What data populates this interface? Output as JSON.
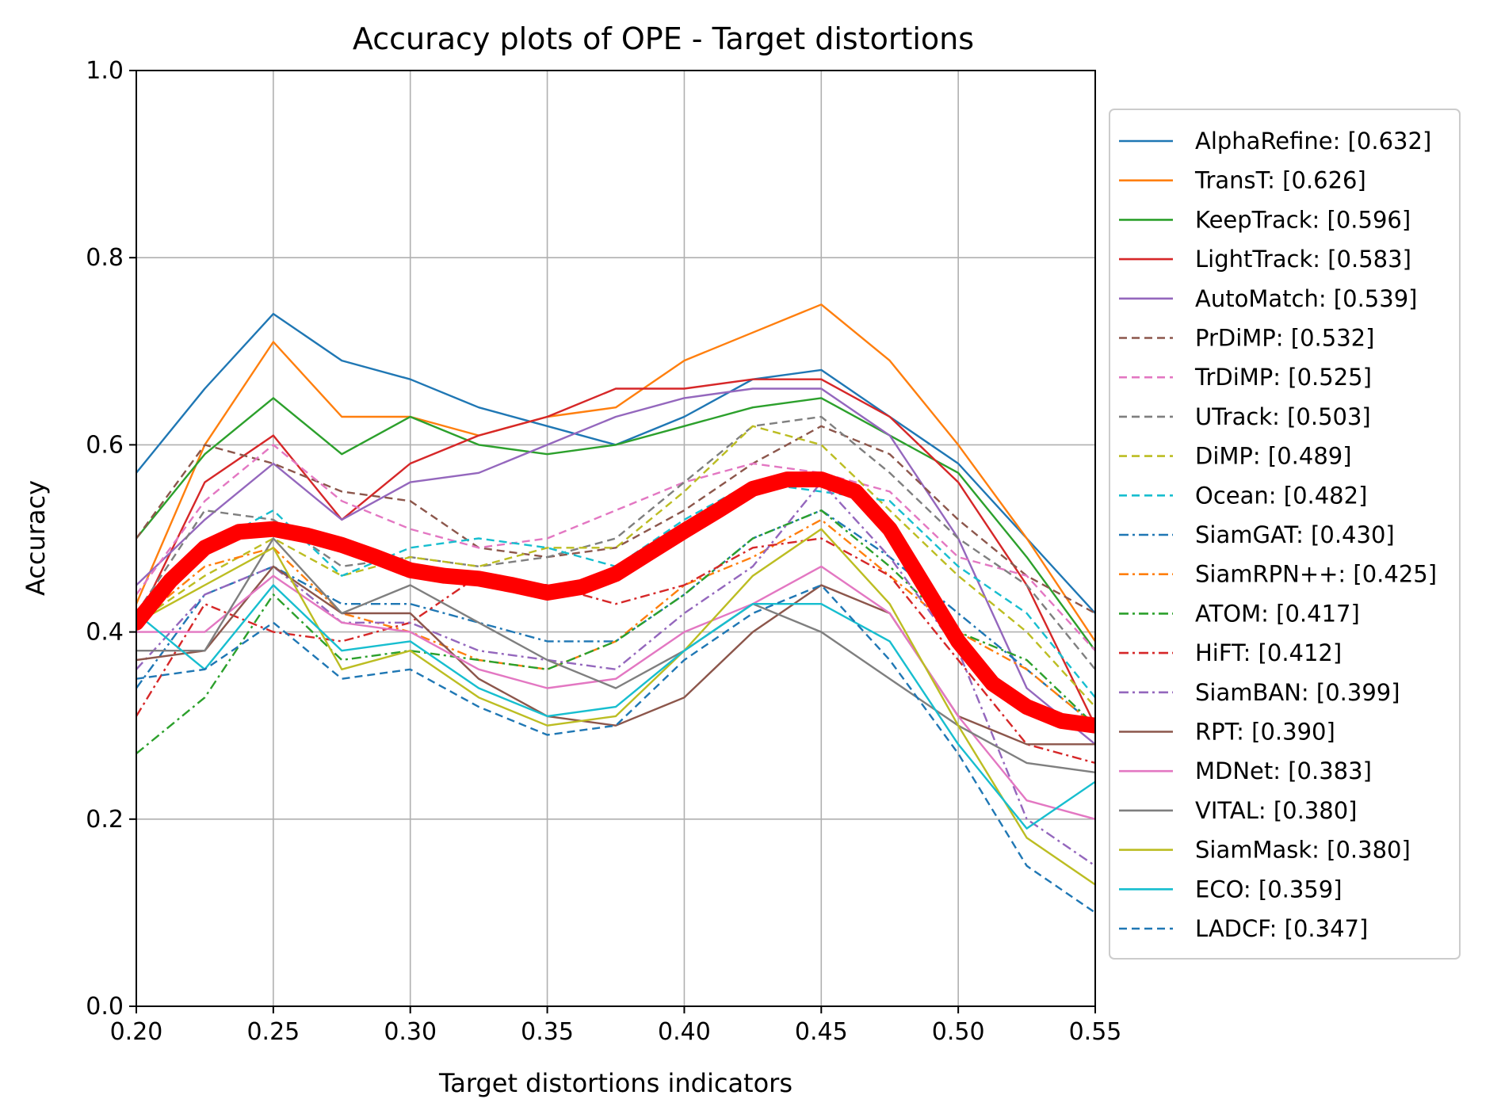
{
  "chart_data": {
    "type": "line",
    "title": "Accuracy plots of OPE - Target distortions",
    "xlabel": "Target distortions indicators",
    "ylabel": "Accuracy",
    "xlim": [
      0.2,
      0.55
    ],
    "ylim": [
      0.0,
      1.0
    ],
    "xticks": [
      0.2,
      0.25,
      0.3,
      0.35,
      0.4,
      0.45,
      0.5,
      0.55
    ],
    "yticks": [
      0.0,
      0.2,
      0.4,
      0.6,
      0.8,
      1.0
    ],
    "xtick_labels": [
      "0.20",
      "0.25",
      "0.30",
      "0.35",
      "0.40",
      "0.45",
      "0.50",
      "0.55"
    ],
    "ytick_labels": [
      "0.0",
      "0.2",
      "0.4",
      "0.6",
      "0.8",
      "1.0"
    ],
    "grid": true,
    "legend_position": "right-outside",
    "x": [
      0.2,
      0.225,
      0.25,
      0.275,
      0.3,
      0.325,
      0.35,
      0.375,
      0.4,
      0.425,
      0.45,
      0.475,
      0.5,
      0.525,
      0.55
    ],
    "series": [
      {
        "name": "AlphaRefine: [0.632]",
        "color": "#1f77b4",
        "dash": "solid",
        "values": [
          0.57,
          0.66,
          0.74,
          0.69,
          0.67,
          0.64,
          0.62,
          0.6,
          0.63,
          0.67,
          0.68,
          0.63,
          0.58,
          0.5,
          0.42
        ]
      },
      {
        "name": "TransT: [0.626]",
        "color": "#ff7f0e",
        "dash": "solid",
        "values": [
          0.43,
          0.6,
          0.71,
          0.63,
          0.63,
          0.61,
          0.63,
          0.64,
          0.69,
          0.72,
          0.75,
          0.69,
          0.6,
          0.5,
          0.39
        ]
      },
      {
        "name": "KeepTrack: [0.596]",
        "color": "#2ca02c",
        "dash": "solid",
        "values": [
          0.5,
          0.59,
          0.65,
          0.59,
          0.63,
          0.6,
          0.59,
          0.6,
          0.62,
          0.64,
          0.65,
          0.61,
          0.57,
          0.48,
          0.38
        ]
      },
      {
        "name": "LightTrack: [0.583]",
        "color": "#d62728",
        "dash": "solid",
        "values": [
          0.41,
          0.56,
          0.61,
          0.52,
          0.58,
          0.61,
          0.63,
          0.66,
          0.66,
          0.67,
          0.67,
          0.63,
          0.56,
          0.45,
          0.3
        ]
      },
      {
        "name": "AutoMatch: [0.539]",
        "color": "#9467bd",
        "dash": "solid",
        "values": [
          0.45,
          0.52,
          0.58,
          0.52,
          0.56,
          0.57,
          0.6,
          0.63,
          0.65,
          0.66,
          0.66,
          0.61,
          0.5,
          0.34,
          0.28
        ]
      },
      {
        "name": "PrDiMP: [0.532]",
        "color": "#8c564b",
        "dash": "dashed",
        "values": [
          0.5,
          0.6,
          0.58,
          0.55,
          0.54,
          0.49,
          0.48,
          0.49,
          0.53,
          0.58,
          0.62,
          0.59,
          0.52,
          0.46,
          0.42
        ]
      },
      {
        "name": "TrDiMP: [0.525]",
        "color": "#e377c2",
        "dash": "dashed",
        "values": [
          0.44,
          0.54,
          0.6,
          0.54,
          0.51,
          0.49,
          0.5,
          0.53,
          0.56,
          0.58,
          0.57,
          0.55,
          0.48,
          0.46,
          0.38
        ]
      },
      {
        "name": "UTrack: [0.503]",
        "color": "#7f7f7f",
        "dash": "dashed",
        "values": [
          0.42,
          0.53,
          0.52,
          0.47,
          0.48,
          0.47,
          0.48,
          0.5,
          0.56,
          0.62,
          0.63,
          0.57,
          0.5,
          0.45,
          0.36
        ]
      },
      {
        "name": "DiMP: [0.489]",
        "color": "#bcbd22",
        "dash": "dashed",
        "values": [
          0.41,
          0.46,
          0.5,
          0.46,
          0.48,
          0.47,
          0.49,
          0.49,
          0.55,
          0.62,
          0.6,
          0.53,
          0.46,
          0.4,
          0.32
        ]
      },
      {
        "name": "Ocean: [0.482]",
        "color": "#17becf",
        "dash": "dashed",
        "values": [
          0.42,
          0.49,
          0.53,
          0.46,
          0.49,
          0.5,
          0.49,
          0.47,
          0.52,
          0.56,
          0.55,
          0.54,
          0.47,
          0.42,
          0.33
        ]
      },
      {
        "name": "SiamGAT: [0.430]",
        "color": "#1f77b4",
        "dash": "dashdot",
        "values": [
          0.34,
          0.44,
          0.47,
          0.43,
          0.43,
          0.41,
          0.39,
          0.39,
          0.44,
          0.5,
          0.53,
          0.48,
          0.42,
          0.36,
          0.3
        ]
      },
      {
        "name": "SiamRPN++: [0.425]",
        "color": "#ff7f0e",
        "dash": "dashdot",
        "values": [
          0.41,
          0.47,
          0.49,
          0.42,
          0.4,
          0.37,
          0.36,
          0.39,
          0.45,
          0.48,
          0.52,
          0.46,
          0.4,
          0.36,
          0.3
        ]
      },
      {
        "name": "ATOM: [0.417]",
        "color": "#2ca02c",
        "dash": "dashdot",
        "values": [
          0.27,
          0.33,
          0.44,
          0.37,
          0.38,
          0.37,
          0.36,
          0.39,
          0.44,
          0.5,
          0.53,
          0.47,
          0.4,
          0.37,
          0.3
        ]
      },
      {
        "name": "HiFT: [0.412]",
        "color": "#d62728",
        "dash": "dashdot",
        "values": [
          0.31,
          0.43,
          0.4,
          0.39,
          0.41,
          0.46,
          0.45,
          0.43,
          0.45,
          0.49,
          0.5,
          0.46,
          0.37,
          0.28,
          0.26
        ]
      },
      {
        "name": "SiamBAN: [0.399]",
        "color": "#9467bd",
        "dash": "dashdot",
        "values": [
          0.36,
          0.44,
          0.47,
          0.41,
          0.41,
          0.38,
          0.37,
          0.36,
          0.42,
          0.47,
          0.56,
          0.48,
          0.38,
          0.2,
          0.15
        ]
      },
      {
        "name": "RPT: [0.390]",
        "color": "#8c564b",
        "dash": "solid",
        "values": [
          0.37,
          0.38,
          0.47,
          0.42,
          0.42,
          0.35,
          0.31,
          0.3,
          0.33,
          0.4,
          0.45,
          0.42,
          0.31,
          0.28,
          0.28
        ]
      },
      {
        "name": "MDNet: [0.383]",
        "color": "#e377c2",
        "dash": "solid",
        "values": [
          0.4,
          0.4,
          0.46,
          0.41,
          0.4,
          0.36,
          0.34,
          0.35,
          0.4,
          0.43,
          0.47,
          0.42,
          0.31,
          0.22,
          0.2
        ]
      },
      {
        "name": "VITAL: [0.380]",
        "color": "#7f7f7f",
        "dash": "solid",
        "values": [
          0.38,
          0.38,
          0.5,
          0.42,
          0.45,
          0.41,
          0.37,
          0.34,
          0.38,
          0.43,
          0.4,
          0.35,
          0.3,
          0.26,
          0.25
        ]
      },
      {
        "name": "SiamMask: [0.380]",
        "color": "#bcbd22",
        "dash": "solid",
        "values": [
          0.41,
          0.45,
          0.49,
          0.36,
          0.38,
          0.33,
          0.3,
          0.31,
          0.38,
          0.46,
          0.51,
          0.43,
          0.3,
          0.18,
          0.13
        ]
      },
      {
        "name": "ECO: [0.359]",
        "color": "#17becf",
        "dash": "solid",
        "values": [
          0.42,
          0.36,
          0.45,
          0.38,
          0.39,
          0.34,
          0.31,
          0.32,
          0.38,
          0.43,
          0.43,
          0.39,
          0.28,
          0.19,
          0.24
        ]
      },
      {
        "name": "LADCF: [0.347]",
        "color": "#1f77b4",
        "dash": "dashed",
        "values": [
          0.35,
          0.36,
          0.41,
          0.35,
          0.36,
          0.32,
          0.29,
          0.3,
          0.37,
          0.42,
          0.45,
          0.37,
          0.27,
          0.15,
          0.1
        ]
      }
    ],
    "mean_curve": {
      "color": "#ff0000",
      "x": [
        0.2,
        0.2125,
        0.225,
        0.2375,
        0.25,
        0.2625,
        0.275,
        0.2875,
        0.3,
        0.3125,
        0.325,
        0.3375,
        0.35,
        0.3625,
        0.375,
        0.3875,
        0.4,
        0.4125,
        0.425,
        0.4375,
        0.45,
        0.4625,
        0.475,
        0.4875,
        0.5,
        0.5125,
        0.525,
        0.5375,
        0.55
      ],
      "values": [
        0.41,
        0.455,
        0.49,
        0.507,
        0.51,
        0.503,
        0.493,
        0.48,
        0.466,
        0.46,
        0.457,
        0.45,
        0.442,
        0.448,
        0.462,
        0.485,
        0.508,
        0.53,
        0.553,
        0.563,
        0.563,
        0.55,
        0.51,
        0.45,
        0.39,
        0.345,
        0.32,
        0.305,
        0.3
      ]
    }
  }
}
